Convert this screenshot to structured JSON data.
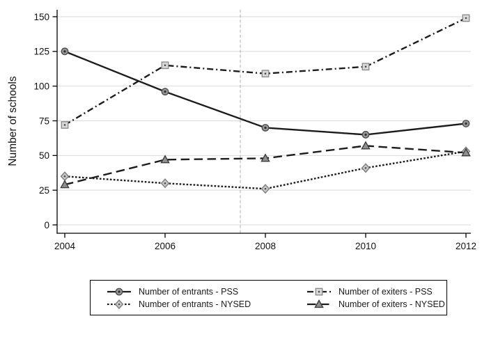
{
  "chart_data": {
    "type": "line",
    "title": "",
    "xlabel": "",
    "ylabel": "Number of schools",
    "x": [
      2004,
      2006,
      2008,
      2010,
      2012
    ],
    "xlim": [
      2004,
      2012
    ],
    "ylim": [
      0,
      150
    ],
    "yticks": [
      0,
      25,
      50,
      75,
      100,
      125,
      150
    ],
    "grid": "horizontal-only",
    "gridline_color": "#d9d9d9",
    "axis_color": "#000000",
    "reference_line": {
      "x": 2007.5,
      "style": "dashed",
      "color": "#a8a8a8"
    },
    "legend_position": "bottom-boxed-2col",
    "series": [
      {
        "name": "Number of entrants - PSS",
        "values": [
          125,
          96,
          70,
          65,
          73
        ],
        "line_style": "solid",
        "marker": "circle",
        "color": "#1c1c1c",
        "marker_fill": "#989898",
        "marker_stroke": "#4d4d4d"
      },
      {
        "name": "Number of exiters - PSS",
        "values": [
          72,
          115,
          109,
          114,
          149
        ],
        "line_style": "dash-dot",
        "marker": "square",
        "color": "#1c1c1c",
        "marker_fill": "#d9d9d9",
        "marker_stroke": "#8c8c8c"
      },
      {
        "name": "Number of entrants - NYSED",
        "values": [
          35,
          30,
          26,
          41,
          53
        ],
        "line_style": "dotted",
        "marker": "diamond",
        "color": "#1c1c1c",
        "marker_fill": "#c9c9c9",
        "marker_stroke": "#7d7d7d"
      },
      {
        "name": "Number of exiters - NYSED",
        "values": [
          29,
          47,
          48,
          57,
          52
        ],
        "line_style": "long-dash",
        "marker": "triangle",
        "color": "#1c1c1c",
        "marker_fill": "#8f8f8f",
        "marker_stroke": "#3d3d3d"
      }
    ]
  }
}
